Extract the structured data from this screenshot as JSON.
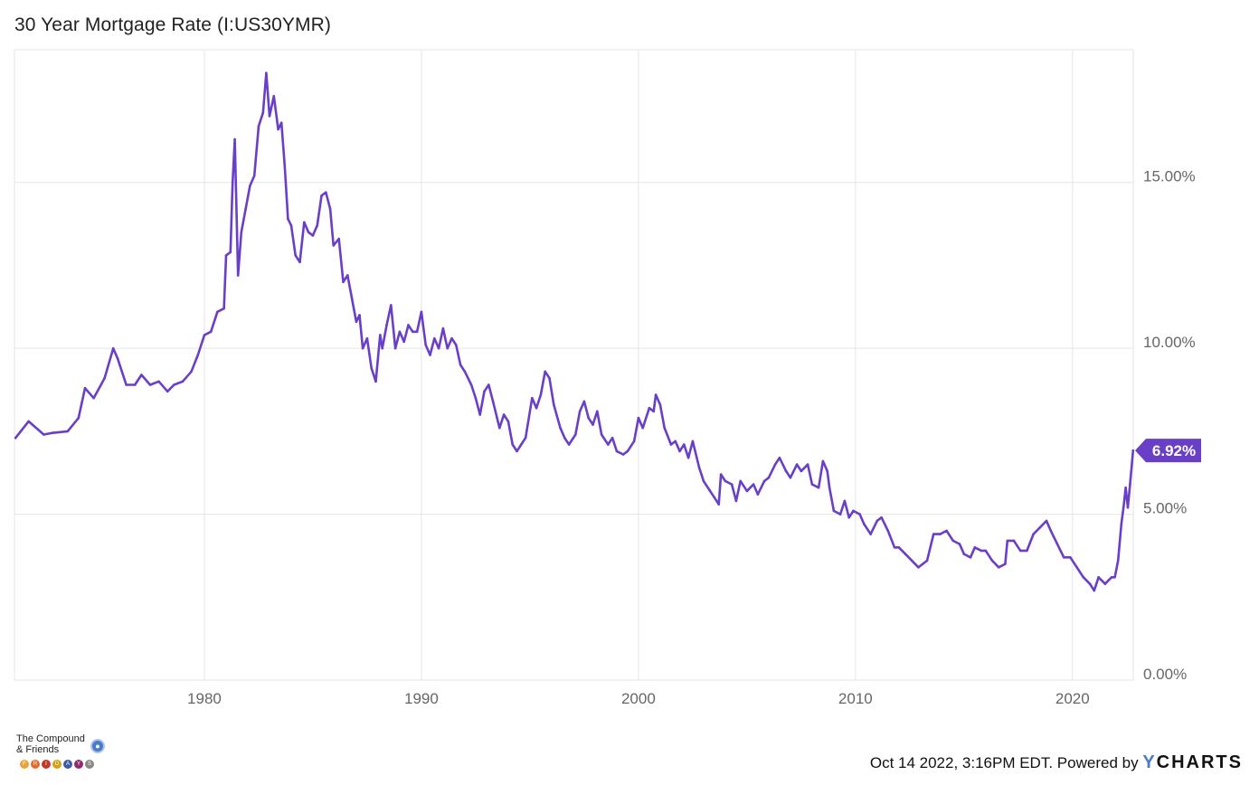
{
  "title": "30 Year Mortgage Rate (I:US30YMR)",
  "footer": {
    "brand_line1": "The Compound",
    "brand_line2": "& Friends",
    "brand_days": [
      "F",
      "R",
      "I",
      "D",
      "A",
      "Y",
      "S"
    ],
    "timestamp": "Oct 14 2022, 3:16PM EDT.",
    "powered_by": "Powered by",
    "ycharts_y": "Y",
    "ycharts_rest": "CHARTS"
  },
  "colors": {
    "line": "#6a3fc8",
    "grid": "#e5e5e5",
    "axis_text": "#666666",
    "badge": "#6a3fc8"
  },
  "chart_data": {
    "type": "line",
    "y_axis_side": "right",
    "y_ticks": [
      0,
      5,
      10,
      15
    ],
    "y_tick_labels": [
      "0.00%",
      "5.00%",
      "10.00%",
      "15.00%"
    ],
    "x_ticks": [
      1980,
      1990,
      2000,
      2010,
      2020
    ],
    "x_tick_labels": [
      "1980",
      "1990",
      "2000",
      "2010",
      "2020"
    ],
    "xlim": [
      1971.25,
      2022.8
    ],
    "ylim": [
      0,
      19
    ],
    "last_value_label": "6.92%",
    "series": [
      {
        "points": [
          [
            1971.3,
            7.3
          ],
          [
            1971.9,
            7.8
          ],
          [
            1972.6,
            7.4
          ],
          [
            1973.0,
            7.45
          ],
          [
            1973.7,
            7.5
          ],
          [
            1974.2,
            7.9
          ],
          [
            1974.5,
            8.8
          ],
          [
            1974.9,
            8.5
          ],
          [
            1975.4,
            9.1
          ],
          [
            1975.8,
            10.0
          ],
          [
            1976.0,
            9.7
          ],
          [
            1976.4,
            8.9
          ],
          [
            1976.8,
            8.9
          ],
          [
            1977.1,
            9.2
          ],
          [
            1977.5,
            8.9
          ],
          [
            1977.9,
            9.0
          ],
          [
            1978.3,
            8.7
          ],
          [
            1978.6,
            8.9
          ],
          [
            1979.0,
            9.0
          ],
          [
            1979.4,
            9.3
          ],
          [
            1979.7,
            9.8
          ],
          [
            1980.0,
            10.4
          ],
          [
            1980.3,
            10.5
          ],
          [
            1980.6,
            11.1
          ],
          [
            1980.9,
            11.2
          ],
          [
            1981.0,
            12.8
          ],
          [
            1981.2,
            12.9
          ],
          [
            1981.3,
            15.0
          ],
          [
            1981.4,
            16.3
          ],
          [
            1981.55,
            12.2
          ],
          [
            1981.7,
            13.5
          ],
          [
            1981.9,
            14.2
          ],
          [
            1982.1,
            14.9
          ],
          [
            1982.3,
            15.2
          ],
          [
            1982.5,
            16.7
          ],
          [
            1982.7,
            17.1
          ],
          [
            1982.85,
            18.3
          ],
          [
            1983.0,
            17.0
          ],
          [
            1983.2,
            17.6
          ],
          [
            1983.4,
            16.6
          ],
          [
            1983.55,
            16.8
          ],
          [
            1983.7,
            15.5
          ],
          [
            1983.85,
            13.9
          ],
          [
            1984.0,
            13.7
          ],
          [
            1984.2,
            12.8
          ],
          [
            1984.4,
            12.6
          ],
          [
            1984.6,
            13.8
          ],
          [
            1984.8,
            13.5
          ],
          [
            1985.0,
            13.4
          ],
          [
            1985.2,
            13.7
          ],
          [
            1985.4,
            14.6
          ],
          [
            1985.6,
            14.7
          ],
          [
            1985.8,
            14.2
          ],
          [
            1985.95,
            13.1
          ],
          [
            1986.2,
            13.3
          ],
          [
            1986.4,
            12.0
          ],
          [
            1986.6,
            12.2
          ],
          [
            1986.8,
            11.5
          ],
          [
            1987.0,
            10.8
          ],
          [
            1987.15,
            11.0
          ],
          [
            1987.3,
            10.0
          ],
          [
            1987.5,
            10.3
          ],
          [
            1987.7,
            9.4
          ],
          [
            1987.9,
            9.0
          ],
          [
            1988.1,
            10.4
          ],
          [
            1988.2,
            10.0
          ],
          [
            1988.4,
            10.7
          ],
          [
            1988.6,
            11.3
          ],
          [
            1988.8,
            10.0
          ],
          [
            1989.0,
            10.5
          ],
          [
            1989.2,
            10.2
          ],
          [
            1989.4,
            10.7
          ],
          [
            1989.6,
            10.5
          ],
          [
            1989.8,
            10.5
          ],
          [
            1990.0,
            11.1
          ],
          [
            1990.2,
            10.1
          ],
          [
            1990.4,
            9.8
          ],
          [
            1990.6,
            10.3
          ],
          [
            1990.8,
            10.0
          ],
          [
            1991.0,
            10.6
          ],
          [
            1991.2,
            10.0
          ],
          [
            1991.4,
            10.3
          ],
          [
            1991.6,
            10.1
          ],
          [
            1991.8,
            9.5
          ],
          [
            1992.0,
            9.3
          ],
          [
            1992.3,
            8.9
          ],
          [
            1992.5,
            8.5
          ],
          [
            1992.7,
            8.0
          ],
          [
            1992.9,
            8.7
          ],
          [
            1993.1,
            8.9
          ],
          [
            1993.3,
            8.4
          ],
          [
            1993.6,
            7.6
          ],
          [
            1993.8,
            8.0
          ],
          [
            1994.0,
            7.8
          ],
          [
            1994.2,
            7.1
          ],
          [
            1994.4,
            6.9
          ],
          [
            1994.6,
            7.1
          ],
          [
            1994.8,
            7.3
          ],
          [
            1995.1,
            8.5
          ],
          [
            1995.3,
            8.2
          ],
          [
            1995.5,
            8.6
          ],
          [
            1995.7,
            9.3
          ],
          [
            1995.9,
            9.1
          ],
          [
            1996.1,
            8.3
          ],
          [
            1996.4,
            7.6
          ],
          [
            1996.6,
            7.3
          ],
          [
            1996.8,
            7.1
          ],
          [
            1997.1,
            7.4
          ],
          [
            1997.3,
            8.1
          ],
          [
            1997.5,
            8.4
          ],
          [
            1997.7,
            7.9
          ],
          [
            1997.9,
            7.7
          ],
          [
            1998.1,
            8.1
          ],
          [
            1998.3,
            7.4
          ],
          [
            1998.6,
            7.1
          ],
          [
            1998.8,
            7.3
          ],
          [
            1999.0,
            6.9
          ],
          [
            1999.3,
            6.8
          ],
          [
            1999.5,
            6.9
          ],
          [
            1999.8,
            7.2
          ],
          [
            2000.0,
            7.9
          ],
          [
            2000.2,
            7.6
          ],
          [
            2000.5,
            8.2
          ],
          [
            2000.7,
            8.1
          ],
          [
            2000.8,
            8.6
          ],
          [
            2001.0,
            8.3
          ],
          [
            2001.2,
            7.6
          ],
          [
            2001.5,
            7.1
          ],
          [
            2001.7,
            7.2
          ],
          [
            2001.9,
            6.9
          ],
          [
            2002.1,
            7.1
          ],
          [
            2002.3,
            6.7
          ],
          [
            2002.5,
            7.2
          ],
          [
            2002.8,
            6.4
          ],
          [
            2003.0,
            6.0
          ],
          [
            2003.3,
            5.7
          ],
          [
            2003.5,
            5.5
          ],
          [
            2003.7,
            5.3
          ],
          [
            2003.8,
            6.2
          ],
          [
            2004.0,
            6.0
          ],
          [
            2004.3,
            5.9
          ],
          [
            2004.5,
            5.4
          ],
          [
            2004.7,
            6.0
          ],
          [
            2005.0,
            5.7
          ],
          [
            2005.3,
            5.9
          ],
          [
            2005.5,
            5.6
          ],
          [
            2005.8,
            6.0
          ],
          [
            2006.0,
            6.1
          ],
          [
            2006.3,
            6.5
          ],
          [
            2006.5,
            6.7
          ],
          [
            2006.8,
            6.3
          ],
          [
            2007.0,
            6.1
          ],
          [
            2007.3,
            6.5
          ],
          [
            2007.5,
            6.3
          ],
          [
            2007.8,
            6.5
          ],
          [
            2008.0,
            5.9
          ],
          [
            2008.3,
            5.8
          ],
          [
            2008.5,
            6.6
          ],
          [
            2008.7,
            6.3
          ],
          [
            2008.8,
            5.8
          ],
          [
            2009.0,
            5.1
          ],
          [
            2009.3,
            5.0
          ],
          [
            2009.5,
            5.4
          ],
          [
            2009.7,
            4.9
          ],
          [
            2009.9,
            5.1
          ],
          [
            2010.2,
            5.0
          ],
          [
            2010.4,
            4.7
          ],
          [
            2010.7,
            4.4
          ],
          [
            2011.0,
            4.8
          ],
          [
            2011.2,
            4.9
          ],
          [
            2011.5,
            4.5
          ],
          [
            2011.8,
            4.0
          ],
          [
            2012.0,
            4.0
          ],
          [
            2012.3,
            3.8
          ],
          [
            2012.6,
            3.6
          ],
          [
            2012.9,
            3.4
          ],
          [
            2013.1,
            3.5
          ],
          [
            2013.3,
            3.6
          ],
          [
            2013.6,
            4.4
          ],
          [
            2013.9,
            4.4
          ],
          [
            2014.2,
            4.5
          ],
          [
            2014.5,
            4.2
          ],
          [
            2014.8,
            4.1
          ],
          [
            2015.0,
            3.8
          ],
          [
            2015.3,
            3.7
          ],
          [
            2015.5,
            4.0
          ],
          [
            2015.8,
            3.9
          ],
          [
            2016.0,
            3.9
          ],
          [
            2016.3,
            3.6
          ],
          [
            2016.6,
            3.4
          ],
          [
            2016.9,
            3.5
          ],
          [
            2017.0,
            4.2
          ],
          [
            2017.3,
            4.2
          ],
          [
            2017.6,
            3.9
          ],
          [
            2017.9,
            3.9
          ],
          [
            2018.2,
            4.4
          ],
          [
            2018.5,
            4.6
          ],
          [
            2018.8,
            4.8
          ],
          [
            2019.0,
            4.5
          ],
          [
            2019.3,
            4.1
          ],
          [
            2019.6,
            3.7
          ],
          [
            2019.9,
            3.7
          ],
          [
            2020.2,
            3.4
          ],
          [
            2020.5,
            3.1
          ],
          [
            2020.8,
            2.9
          ],
          [
            2021.0,
            2.7
          ],
          [
            2021.2,
            3.1
          ],
          [
            2021.5,
            2.9
          ],
          [
            2021.8,
            3.1
          ],
          [
            2021.95,
            3.1
          ],
          [
            2022.1,
            3.6
          ],
          [
            2022.25,
            4.7
          ],
          [
            2022.35,
            5.2
          ],
          [
            2022.45,
            5.8
          ],
          [
            2022.55,
            5.2
          ],
          [
            2022.65,
            5.9
          ],
          [
            2022.79,
            6.92
          ]
        ]
      }
    ]
  }
}
